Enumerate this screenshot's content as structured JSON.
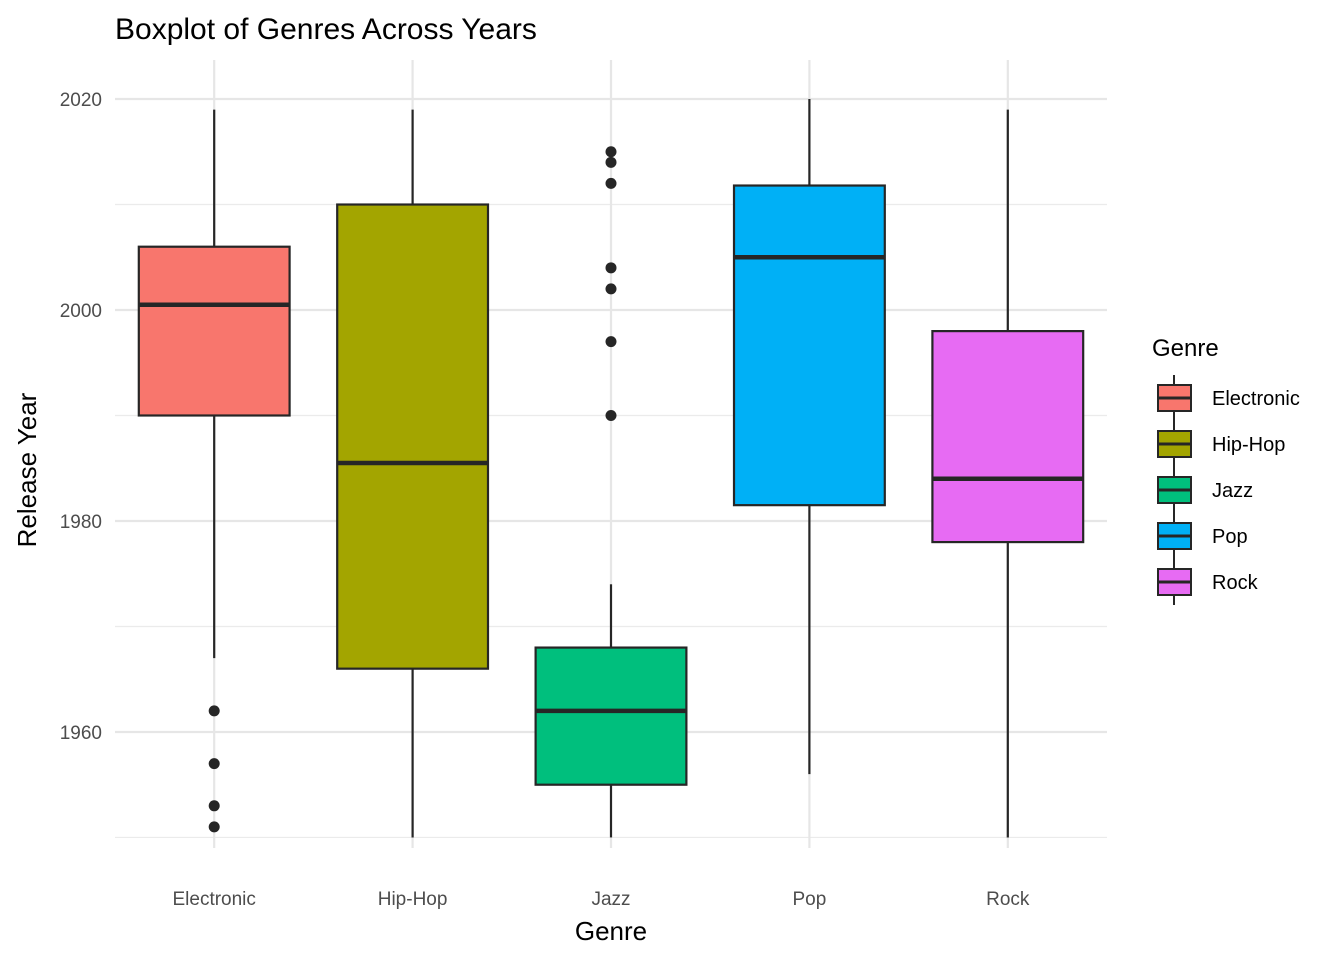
{
  "chart_data": {
    "type": "boxplot",
    "title": "Boxplot of Genres Across Years",
    "xlabel": "Genre",
    "ylabel": "Release Year",
    "ylim": [
      1949,
      2023.7
    ],
    "yticks": [
      1960,
      1980,
      2000,
      2020
    ],
    "ytick_labels": [
      "1960",
      "1980",
      "2000",
      "2020"
    ],
    "grid": true,
    "legend": {
      "title": "Genre",
      "placement": "right"
    },
    "categories": [
      "Electronic",
      "Hip-Hop",
      "Jazz",
      "Pop",
      "Rock"
    ],
    "series": [
      {
        "name": "Electronic",
        "color": "#F8766D",
        "whisker_low": 1967,
        "q1": 1990,
        "median": 2000.5,
        "q3": 2006,
        "whisker_high": 2019,
        "outliers": [
          1962,
          1957,
          1953,
          1951
        ]
      },
      {
        "name": "Hip-Hop",
        "color": "#A3A500",
        "whisker_low": 1950,
        "q1": 1966,
        "median": 1985.5,
        "q3": 2010,
        "whisker_high": 2019,
        "outliers": []
      },
      {
        "name": "Jazz",
        "color": "#00BF7D",
        "whisker_low": 1950,
        "q1": 1955,
        "median": 1962,
        "q3": 1968,
        "whisker_high": 1974,
        "outliers": [
          2015,
          2014,
          2012,
          2004,
          2002,
          1997,
          1990
        ]
      },
      {
        "name": "Pop",
        "color": "#00B0F6",
        "whisker_low": 1956,
        "q1": 1981.5,
        "median": 2005,
        "q3": 2011.8,
        "whisker_high": 2020,
        "outliers": []
      },
      {
        "name": "Rock",
        "color": "#E76BF3",
        "whisker_low": 1950,
        "q1": 1978,
        "median": 1984,
        "q3": 1998,
        "whisker_high": 2019,
        "outliers": []
      }
    ]
  }
}
